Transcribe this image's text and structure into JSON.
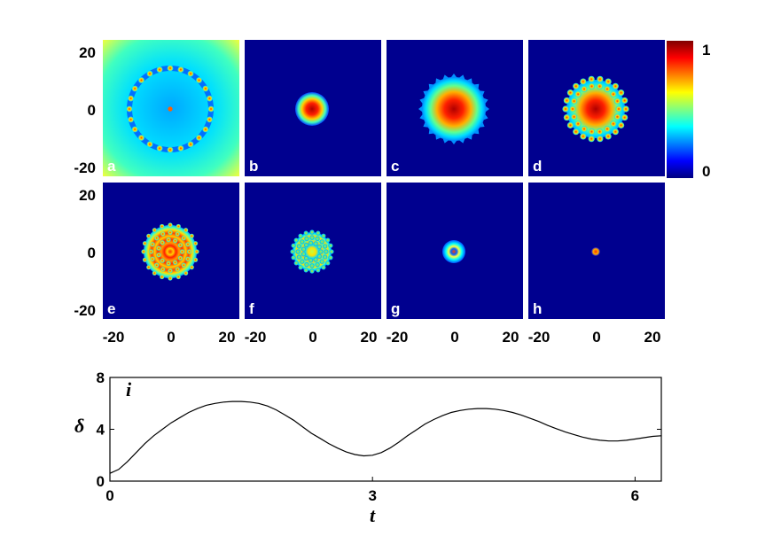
{
  "colorbar": {
    "max_label": "1",
    "min_label": "0",
    "colors": [
      "#000080",
      "#0000ff",
      "#0080ff",
      "#00ffff",
      "#80ff80",
      "#ffff00",
      "#ff8000",
      "#ff0000",
      "#800000"
    ]
  },
  "panels": [
    {
      "label": "a",
      "kind": "ring"
    },
    {
      "label": "b",
      "kind": "blob"
    },
    {
      "label": "c",
      "kind": "blob_spiky"
    },
    {
      "label": "d",
      "kind": "blob_beaded"
    },
    {
      "label": "e",
      "kind": "rings_multi"
    },
    {
      "label": "f",
      "kind": "rings_multi"
    },
    {
      "label": "g",
      "kind": "small_ring"
    },
    {
      "label": "h",
      "kind": "dot"
    }
  ],
  "panel_axes": {
    "y_ticks_top": [
      "20",
      "0",
      "-20"
    ],
    "y_ticks_bottom": [
      "20",
      "0",
      "-20"
    ],
    "x_ticks": [
      "-20",
      "0",
      "20"
    ]
  },
  "chart_data": {
    "type": "line",
    "label": "i",
    "xlabel": "t",
    "ylabel": "δ",
    "xlim": [
      0,
      6.3
    ],
    "ylim": [
      0,
      8
    ],
    "x_ticks": [
      "0",
      "3",
      "6"
    ],
    "y_ticks": [
      "0",
      "4",
      "8"
    ],
    "series": [
      {
        "x": [
          0,
          0.1,
          0.2,
          0.3,
          0.4,
          0.5,
          0.6,
          0.7,
          0.8,
          0.9,
          1.0,
          1.1,
          1.2,
          1.3,
          1.4,
          1.5,
          1.6,
          1.7,
          1.8,
          1.9,
          2.0,
          2.1,
          2.2,
          2.3,
          2.4,
          2.5,
          2.6,
          2.7,
          2.8,
          2.9,
          3.0,
          3.1,
          3.2,
          3.3,
          3.4,
          3.5,
          3.6,
          3.7,
          3.8,
          3.9,
          4.0,
          4.1,
          4.2,
          4.3,
          4.4,
          4.5,
          4.6,
          4.7,
          4.8,
          4.9,
          5.0,
          5.1,
          5.2,
          5.3,
          5.4,
          5.5,
          5.6,
          5.7,
          5.8,
          5.9,
          6.0,
          6.1,
          6.2,
          6.3
        ],
        "y": [
          0.6,
          0.9,
          1.5,
          2.2,
          2.9,
          3.5,
          4.0,
          4.5,
          4.9,
          5.3,
          5.6,
          5.85,
          6.0,
          6.1,
          6.15,
          6.15,
          6.1,
          6.0,
          5.8,
          5.5,
          5.1,
          4.7,
          4.2,
          3.7,
          3.3,
          2.9,
          2.55,
          2.25,
          2.05,
          1.95,
          2.0,
          2.2,
          2.55,
          3.0,
          3.5,
          3.95,
          4.4,
          4.75,
          5.05,
          5.3,
          5.45,
          5.55,
          5.6,
          5.6,
          5.55,
          5.45,
          5.3,
          5.1,
          4.85,
          4.6,
          4.3,
          4.05,
          3.8,
          3.6,
          3.4,
          3.25,
          3.15,
          3.1,
          3.1,
          3.15,
          3.25,
          3.35,
          3.45,
          3.5
        ]
      }
    ]
  }
}
